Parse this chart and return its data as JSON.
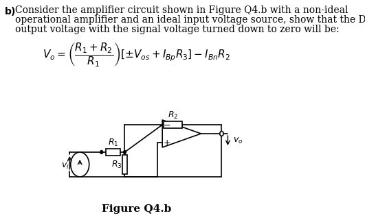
{
  "title_text": "b)",
  "paragraph": "Consider the amplifier circuit shown in Figure Q4.b with a non-ideal\noperational amplifier and an ideal input voltage source, show that the DC\noutput voltage with the signal voltage turned down to zero will be:",
  "formula": "$V_o = \\left(\\dfrac{R_1 + R_2}{R_1}\\right)\\left[\\pm V_{os} + I_{Bp}R_3\\right] - I_{Bn}R_2$",
  "figure_label": "Figure Q4.b",
  "bg_color": "#ffffff",
  "text_color": "#000000",
  "font_size_body": 10,
  "font_size_formula": 11,
  "font_size_fig_label": 11
}
